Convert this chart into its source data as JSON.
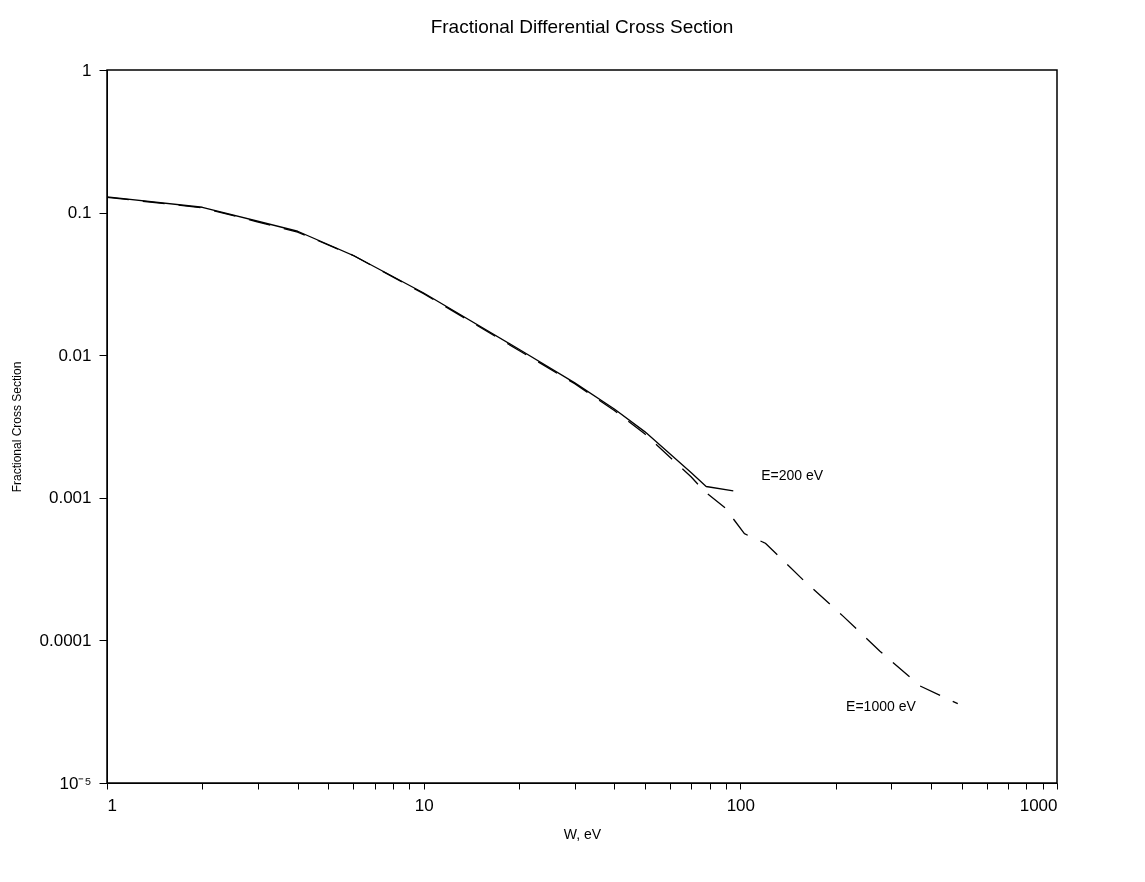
{
  "chart_data": {
    "type": "line",
    "title": "Fractional Differential Cross Section",
    "xlabel": "W, eV",
    "ylabel": "Fractional Cross Section",
    "log": "xy",
    "grid": false,
    "legend": false,
    "marker": "none",
    "xlim": [
      1,
      1000
    ],
    "ylim": [
      1e-05,
      1
    ],
    "xticks": [
      1,
      {
        "value": 2,
        "label": null
      },
      {
        "value": 3,
        "label": null
      },
      {
        "value": 4,
        "label": null
      },
      {
        "value": 5,
        "label": null
      },
      {
        "value": 6,
        "label": null
      },
      {
        "value": 7,
        "label": null
      },
      {
        "value": 8,
        "label": null
      },
      {
        "value": 9,
        "label": null
      },
      10,
      {
        "value": 20,
        "label": null
      },
      {
        "value": 30,
        "label": null
      },
      {
        "value": 40,
        "label": null
      },
      {
        "value": 50,
        "label": null
      },
      {
        "value": 60,
        "label": null
      },
      {
        "value": 70,
        "label": null
      },
      {
        "value": 80,
        "label": null
      },
      {
        "value": 90,
        "label": null
      },
      100,
      {
        "value": 200,
        "label": null
      },
      {
        "value": 300,
        "label": null
      },
      {
        "value": 400,
        "label": null
      },
      {
        "value": 500,
        "label": null
      },
      {
        "value": 600,
        "label": null
      },
      {
        "value": 700,
        "label": null
      },
      {
        "value": 800,
        "label": null
      },
      {
        "value": 900,
        "label": null
      },
      1000
    ],
    "yticks": [
      {
        "value": 1e-05,
        "label": "10⁻⁵"
      },
      0.0001,
      0.001,
      0.01,
      0.1,
      1
    ],
    "series": [
      {
        "name": "E=200 eV",
        "color": "#000000",
        "line_style": "solid",
        "x": [
          1,
          2,
          4,
          6,
          10,
          20,
          30,
          40,
          50,
          70,
          78,
          95
        ],
        "values": [
          0.129,
          0.109,
          0.074,
          0.05,
          0.0273,
          0.011,
          0.0064,
          0.0042,
          0.0029,
          0.0015,
          0.0012,
          0.00112
        ]
      },
      {
        "name": "E=1000 eV",
        "color": "#000000",
        "line_style": "dashed",
        "x": [
          1,
          2,
          4,
          6,
          10,
          20,
          30,
          40,
          50,
          70,
          77,
          89.5,
          103,
          120,
          158,
          211,
          276,
          369,
          486
        ],
        "values": [
          0.128,
          0.108,
          0.073,
          0.05,
          0.027,
          0.0108,
          0.0063,
          0.0041,
          0.0028,
          0.0014,
          0.00111,
          0.00085,
          0.00056,
          0.00048,
          0.000265,
          0.000148,
          8.4e-05,
          4.8e-05,
          3.6e-05
        ]
      }
    ]
  }
}
